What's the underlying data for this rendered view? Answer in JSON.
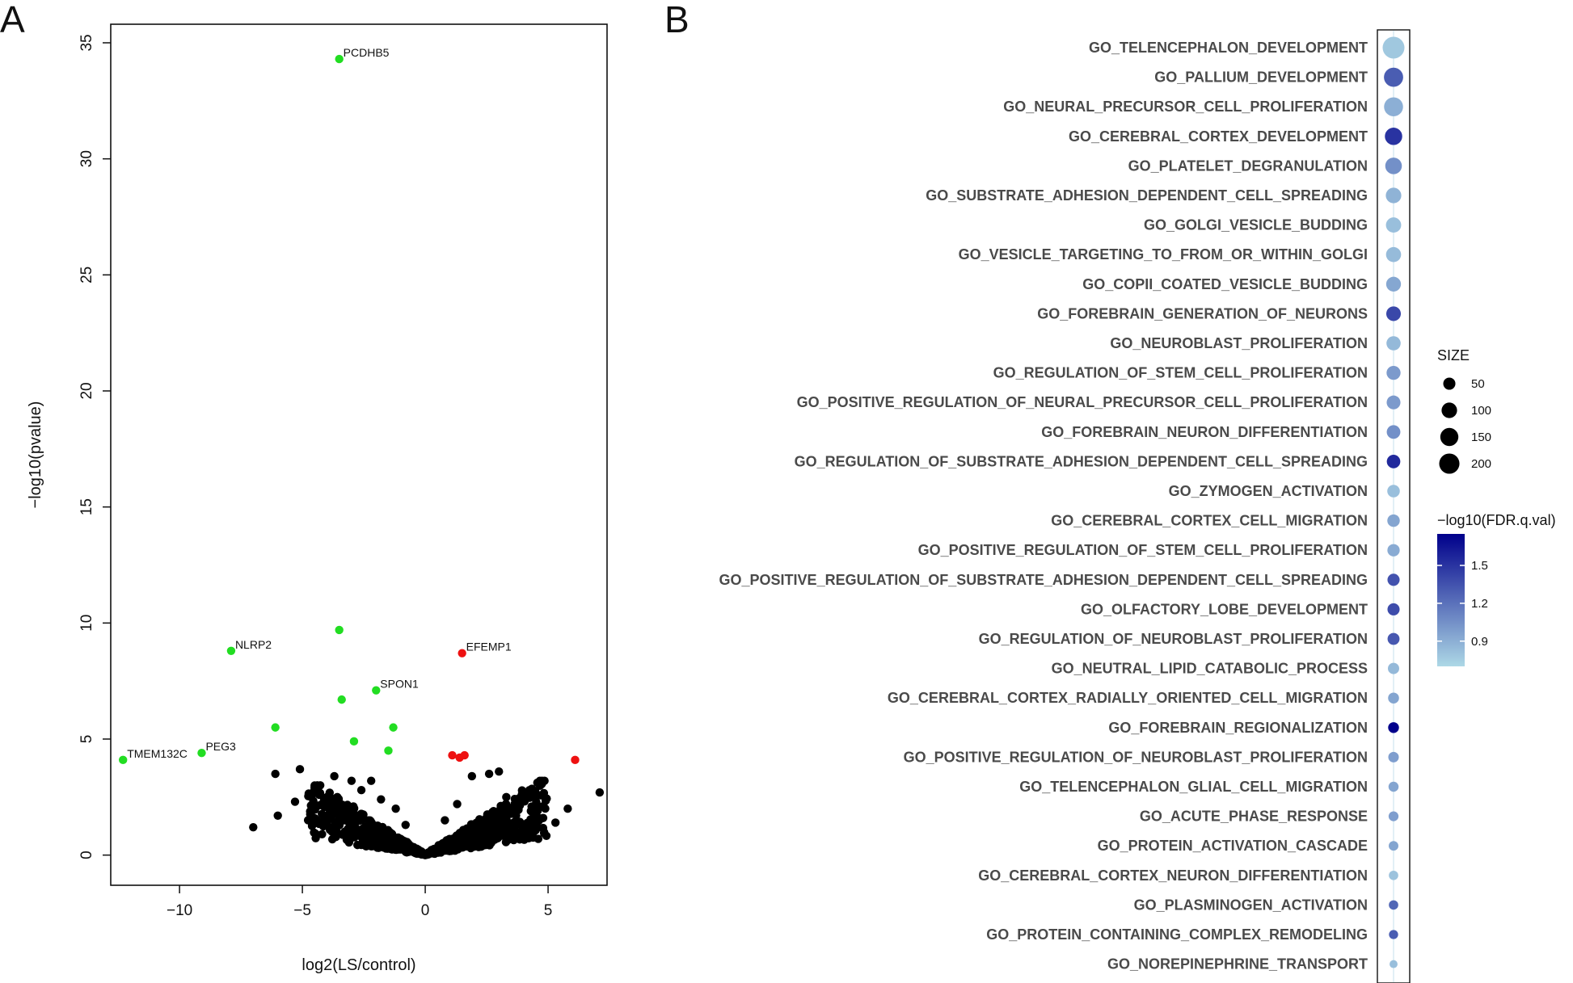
{
  "panels": {
    "a": {
      "letter": "A"
    },
    "b": {
      "letter": "B"
    }
  },
  "chart_data": [
    {
      "panel": "A",
      "type": "scatter",
      "title": "",
      "xlabel": "log2(LS/control)",
      "ylabel": "−log10(pvalue)",
      "xlim": [
        -12.8,
        7.4
      ],
      "ylim": [
        -1.3,
        35.8
      ],
      "xticks": [
        -10,
        -5,
        0,
        5
      ],
      "xtick_labels": [
        "−10",
        "−5",
        "0",
        "5"
      ],
      "yticks": [
        0,
        5,
        10,
        15,
        20,
        25,
        30,
        35
      ],
      "ytick_labels": [
        "0",
        "5",
        "10",
        "15",
        "20",
        "25",
        "30",
        "35"
      ],
      "colors": {
        "significant_down": "#22dd22",
        "significant_up": "#ee1111",
        "not_significant": "#000000"
      },
      "labeled_points": [
        {
          "gene": "PCDHB5",
          "x": -3.5,
          "y": 34.3,
          "group": "down"
        },
        {
          "gene": "NLRP2",
          "x": -7.9,
          "y": 8.8,
          "group": "down"
        },
        {
          "gene": "EFEMP1",
          "x": 1.5,
          "y": 8.7,
          "group": "up"
        },
        {
          "gene": "SPON1",
          "x": -2.0,
          "y": 7.1,
          "group": "down"
        },
        {
          "gene": "PEG3",
          "x": -9.1,
          "y": 4.4,
          "group": "down"
        },
        {
          "gene": "TMEM132C",
          "x": -12.3,
          "y": 4.1,
          "group": "down"
        }
      ],
      "unlabeled_significant": [
        {
          "x": -3.5,
          "y": 9.7,
          "group": "down"
        },
        {
          "x": -3.4,
          "y": 6.7,
          "group": "down"
        },
        {
          "x": -6.1,
          "y": 5.5,
          "group": "down"
        },
        {
          "x": -1.3,
          "y": 5.5,
          "group": "down"
        },
        {
          "x": -2.9,
          "y": 4.9,
          "group": "down"
        },
        {
          "x": -1.5,
          "y": 4.5,
          "group": "down"
        },
        {
          "x": 1.1,
          "y": 4.3,
          "group": "up"
        },
        {
          "x": 1.4,
          "y": 4.2,
          "group": "up"
        },
        {
          "x": 1.6,
          "y": 4.3,
          "group": "up"
        },
        {
          "x": 6.1,
          "y": 4.1,
          "group": "up"
        }
      ],
      "background_points": [
        {
          "x": -6.1,
          "y": 3.5
        },
        {
          "x": -5.1,
          "y": 3.7
        },
        {
          "x": -7.0,
          "y": 1.2
        },
        {
          "x": -6.0,
          "y": 1.7
        },
        {
          "x": -5.3,
          "y": 2.3
        },
        {
          "x": -4.6,
          "y": 1.3
        },
        {
          "x": -4.0,
          "y": 2.5
        },
        {
          "x": -3.7,
          "y": 3.4
        },
        {
          "x": -3.0,
          "y": 3.2
        },
        {
          "x": -2.6,
          "y": 2.8
        },
        {
          "x": -2.2,
          "y": 3.2
        },
        {
          "x": -1.8,
          "y": 2.4
        },
        {
          "x": -1.2,
          "y": 2.0
        },
        {
          "x": -0.8,
          "y": 1.3
        },
        {
          "x": -3.3,
          "y": 1.5
        },
        {
          "x": -2.5,
          "y": 1.0
        },
        {
          "x": -4.2,
          "y": 0.9
        },
        {
          "x": -1.5,
          "y": 0.7
        },
        {
          "x": 0.8,
          "y": 1.5
        },
        {
          "x": 1.3,
          "y": 2.2
        },
        {
          "x": 1.9,
          "y": 3.4
        },
        {
          "x": 2.6,
          "y": 3.5
        },
        {
          "x": 3.0,
          "y": 3.6
        },
        {
          "x": 3.3,
          "y": 2.5
        },
        {
          "x": 3.8,
          "y": 2.1
        },
        {
          "x": 4.3,
          "y": 1.9
        },
        {
          "x": 4.8,
          "y": 1.6
        },
        {
          "x": 5.3,
          "y": 1.4
        },
        {
          "x": 5.8,
          "y": 2.0
        },
        {
          "x": 7.1,
          "y": 2.7
        },
        {
          "x": 2.2,
          "y": 1.1
        },
        {
          "x": 3.5,
          "y": 0.9
        },
        {
          "x": 4.6,
          "y": 0.7
        },
        {
          "x": 1.7,
          "y": 0.6
        }
      ]
    },
    {
      "panel": "B",
      "type": "dot",
      "title": "",
      "xlabel": "",
      "ylabel": "",
      "size_legend_title": "SIZE",
      "size_legend": [
        50,
        100,
        150,
        200
      ],
      "color_legend_title": "−log10(FDR.q.val)",
      "color_range": [
        0.7,
        1.75
      ],
      "color_ticks": [
        1.5,
        1.2,
        0.9
      ],
      "color_low": "#add8e6",
      "color_high": "#00008b",
      "terms": [
        {
          "name": "GO_TELENCEPHALON_DEVELOPMENT",
          "size": 240,
          "fdr": 0.78
        },
        {
          "name": "GO_PALLIUM_DEVELOPMENT",
          "size": 175,
          "fdr": 1.3
        },
        {
          "name": "GO_NEURAL_PRECURSOR_CELL_PROLIFERATION",
          "size": 170,
          "fdr": 0.9
        },
        {
          "name": "GO_CEREBRAL_CORTEX_DEVELOPMENT",
          "size": 135,
          "fdr": 1.5
        },
        {
          "name": "GO_PLATELET_DEGRANULATION",
          "size": 120,
          "fdr": 1.05
        },
        {
          "name": "GO_SUBSTRATE_ADHESION_DEPENDENT_CELL_SPREADING",
          "size": 100,
          "fdr": 0.88
        },
        {
          "name": "GO_GOLGI_VESICLE_BUDDING",
          "size": 95,
          "fdr": 0.82
        },
        {
          "name": "GO_VESICLE_TARGETING_TO_FROM_OR_WITHIN_GOLGI",
          "size": 92,
          "fdr": 0.84
        },
        {
          "name": "GO_COPII_COATED_VESICLE_BUDDING",
          "size": 88,
          "fdr": 0.94
        },
        {
          "name": "GO_FOREBRAIN_GENERATION_OF_NEURONS",
          "size": 85,
          "fdr": 1.4
        },
        {
          "name": "GO_NEUROBLAST_PROLIFERATION",
          "size": 78,
          "fdr": 0.85
        },
        {
          "name": "GO_REGULATION_OF_STEM_CELL_PROLIFERATION",
          "size": 75,
          "fdr": 1.0
        },
        {
          "name": "GO_POSITIVE_REGULATION_OF_NEURAL_PRECURSOR_CELL_PROLIFERATION",
          "size": 72,
          "fdr": 1.0
        },
        {
          "name": "GO_FOREBRAIN_NEURON_DIFFERENTIATION",
          "size": 70,
          "fdr": 1.05
        },
        {
          "name": "GO_REGULATION_OF_SUBSTRATE_ADHESION_DEPENDENT_CELL_SPREADING",
          "size": 68,
          "fdr": 1.55
        },
        {
          "name": "GO_ZYMOGEN_ACTIVATION",
          "size": 55,
          "fdr": 0.82
        },
        {
          "name": "GO_CEREBRAL_CORTEX_CELL_MIGRATION",
          "size": 54,
          "fdr": 0.95
        },
        {
          "name": "GO_POSITIVE_REGULATION_OF_STEM_CELL_PROLIFERATION",
          "size": 52,
          "fdr": 0.92
        },
        {
          "name": "GO_POSITIVE_REGULATION_OF_SUBSTRATE_ADHESION_DEPENDENT_CELL_SPREADING",
          "size": 50,
          "fdr": 1.35
        },
        {
          "name": "GO_OLFACTORY_LOBE_DEVELOPMENT",
          "size": 50,
          "fdr": 1.38
        },
        {
          "name": "GO_REGULATION_OF_NEUROBLAST_PROLIFERATION",
          "size": 48,
          "fdr": 1.32
        },
        {
          "name": "GO_NEUTRAL_LIPID_CATABOLIC_PROCESS",
          "size": 40,
          "fdr": 0.85
        },
        {
          "name": "GO_CEREBRAL_CORTEX_RADIALLY_ORIENTED_CELL_MIGRATION",
          "size": 36,
          "fdr": 0.95
        },
        {
          "name": "GO_FOREBRAIN_REGIONALIZATION",
          "size": 35,
          "fdr": 1.75
        },
        {
          "name": "GO_POSITIVE_REGULATION_OF_NEUROBLAST_PROLIFERATION",
          "size": 32,
          "fdr": 0.98
        },
        {
          "name": "GO_TELENCEPHALON_GLIAL_CELL_MIGRATION",
          "size": 28,
          "fdr": 0.95
        },
        {
          "name": "GO_ACUTE_PHASE_RESPONSE",
          "size": 26,
          "fdr": 0.98
        },
        {
          "name": "GO_PROTEIN_ACTIVATION_CASCADE",
          "size": 24,
          "fdr": 0.95
        },
        {
          "name": "GO_CEREBRAL_CORTEX_NEURON_DIFFERENTIATION",
          "size": 22,
          "fdr": 0.8
        },
        {
          "name": "GO_PLASMINOGEN_ACTIVATION",
          "size": 22,
          "fdr": 1.25
        },
        {
          "name": "GO_PROTEIN_CONTAINING_COMPLEX_REMODELING",
          "size": 20,
          "fdr": 1.3
        },
        {
          "name": "GO_NOREPINEPHRINE_TRANSPORT",
          "size": 12,
          "fdr": 0.82
        }
      ]
    }
  ]
}
